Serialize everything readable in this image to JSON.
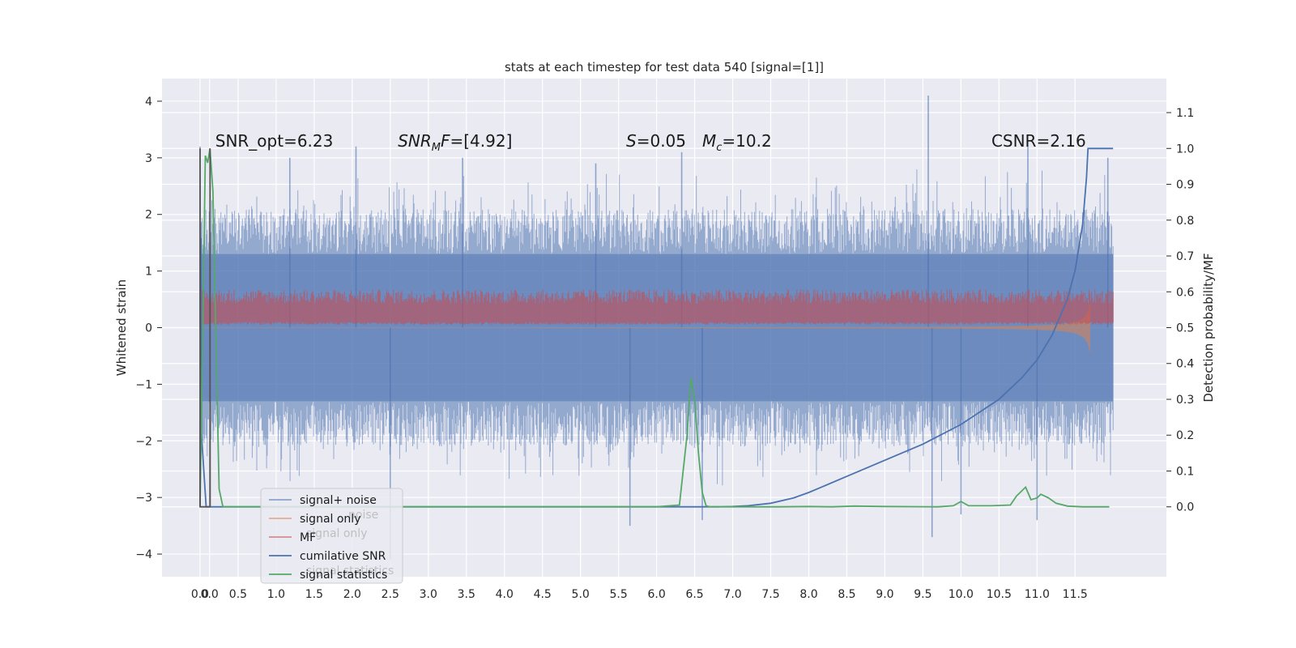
{
  "chart_data": {
    "type": "line",
    "title": "stats at each timestep for test data 540 [signal=[1]]",
    "ylabel_left": "Whitened strain",
    "ylabel_right": "Detection probability/MF",
    "ylim_left": [
      -4.4,
      4.4
    ],
    "ylim_right": [
      -0.195,
      1.195
    ],
    "xlim": [
      -0.5,
      12.7
    ],
    "x_ticks": [
      "0.0",
      "0.0",
      "0.5",
      "1.0",
      "1.5",
      "2.0",
      "2.5",
      "3.0",
      "3.5",
      "4.0",
      "4.5",
      "5.0",
      "5.5",
      "6.0",
      "6.5",
      "7.0",
      "7.5",
      "8.0",
      "8.5",
      "9.0",
      "9.5",
      "10.0",
      "10.5",
      "11.0",
      "11.5"
    ],
    "x_tick_positions": [
      0.0,
      0.125,
      0.5,
      1.0,
      1.5,
      2.0,
      2.5,
      3.0,
      3.5,
      4.0,
      4.5,
      5.0,
      5.5,
      6.0,
      6.5,
      7.0,
      7.5,
      8.0,
      8.5,
      9.0,
      9.5,
      10.0,
      10.5,
      11.0,
      11.5
    ],
    "y_left_ticks": [
      -4,
      -3,
      -2,
      -1,
      0,
      1,
      2,
      3,
      4
    ],
    "y_left_tick_labels": [
      "−4",
      "−3",
      "−2",
      "−1",
      "0",
      "1",
      "2",
      "3",
      "4"
    ],
    "y_right_ticks": [
      0.0,
      0.1,
      0.2,
      0.3,
      0.4,
      0.5,
      0.6,
      0.7,
      0.8,
      0.9,
      1.0,
      1.1
    ],
    "y_right_tick_labels": [
      "0.0",
      "0.1",
      "0.2",
      "0.3",
      "0.4",
      "0.5",
      "0.6",
      "0.7",
      "0.8",
      "0.9",
      "1.0",
      "1.1"
    ],
    "grid": true,
    "legend_placement": "lower-left",
    "annotations": [
      {
        "text": "SNR_opt=6.23",
        "x": 0.2
      },
      {
        "text": "SNR_MF=[4.92]",
        "x": 2.6
      },
      {
        "text": "S=0.05",
        "x": 5.6
      },
      {
        "text": "M_c=10.2",
        "x": 6.6
      },
      {
        "text": "CSNR=2.16",
        "x": 10.4
      }
    ],
    "annotation_y": 3.3,
    "legend_labels": [
      "signal+ noise",
      "signal only",
      "MF",
      "cumilative SNR",
      "signal statistics"
    ],
    "legend_ghost_labels": [
      "noise",
      "signal only",
      "signal statistics"
    ],
    "series": [
      {
        "name": "signal+ noise",
        "axis": "left",
        "color": "#4c72b0",
        "style": "noise-band",
        "x_range": [
          0.0,
          12.0
        ],
        "envelope": {
          "lower_typical": -1.8,
          "upper_typical": 1.8,
          "core": 1.3
        },
        "spikes": [
          [
            0.0,
            3.2
          ],
          [
            1.18,
            3.0
          ],
          [
            2.05,
            3.2
          ],
          [
            3.45,
            3.0
          ],
          [
            5.2,
            2.9
          ],
          [
            6.33,
            3.1
          ],
          [
            9.57,
            4.1
          ],
          [
            10.88,
            3.2
          ],
          [
            11.93,
            3.0
          ],
          [
            2.5,
            -4.1
          ],
          [
            5.65,
            -3.5
          ],
          [
            6.6,
            -3.4
          ],
          [
            9.62,
            -3.7
          ],
          [
            10.0,
            -3.3
          ],
          [
            11.0,
            -3.4
          ]
        ]
      },
      {
        "name": "signal only",
        "axis": "left",
        "color": "#dd8452",
        "style": "chirp",
        "x_range": [
          0.0,
          11.7
        ]
      },
      {
        "name": "MF",
        "axis": "left",
        "color": "#c44e52",
        "style": "mf-band",
        "x_range": [
          0.0,
          12.0
        ],
        "band": [
          0.05,
          0.55
        ]
      },
      {
        "name": "cumilative SNR",
        "axis": "right",
        "color": "#4c72b0",
        "x": [
          0.0,
          0.01,
          0.02,
          0.08,
          1.0,
          2.0,
          3.0,
          4.0,
          5.0,
          6.0,
          6.8,
          7.0,
          7.2,
          7.5,
          7.8,
          8.0,
          8.5,
          9.0,
          9.5,
          10.0,
          10.5,
          10.8,
          11.0,
          11.2,
          11.4,
          11.5,
          11.6,
          11.65,
          11.67,
          12.0
        ],
        "y": [
          0.0,
          0.75,
          0.2,
          0.0,
          0.0,
          0.0,
          0.0,
          0.0,
          0.0,
          0.0,
          0.0,
          0.001,
          0.003,
          0.01,
          0.025,
          0.04,
          0.085,
          0.13,
          0.175,
          0.23,
          0.3,
          0.36,
          0.41,
          0.48,
          0.58,
          0.66,
          0.79,
          0.92,
          1.0,
          1.0
        ]
      },
      {
        "name": "signal statistics",
        "axis": "right",
        "color": "#55a868",
        "x": [
          0.0,
          0.04,
          0.07,
          0.1,
          0.13,
          0.17,
          0.2,
          0.25,
          0.3,
          1.0,
          2.0,
          3.0,
          4.0,
          5.0,
          6.0,
          6.3,
          6.4,
          6.45,
          6.5,
          6.55,
          6.6,
          6.65,
          6.7,
          7.0,
          7.6,
          8.0,
          8.3,
          8.6,
          9.0,
          9.7,
          9.9,
          10.0,
          10.1,
          10.4,
          10.65,
          10.73,
          10.85,
          10.92,
          11.0,
          11.05,
          11.15,
          11.25,
          11.4,
          11.6,
          11.95
        ],
        "y": [
          0.0,
          0.55,
          0.98,
          0.96,
          1.0,
          0.88,
          0.55,
          0.05,
          0.0,
          0.0,
          0.0,
          0.0,
          0.0,
          0.0,
          0.0,
          0.005,
          0.2,
          0.36,
          0.3,
          0.15,
          0.04,
          0.003,
          0.0,
          0.0,
          0.0,
          0.001,
          0.0,
          0.002,
          0.001,
          0.0,
          0.003,
          0.015,
          0.003,
          0.003,
          0.005,
          0.03,
          0.055,
          0.02,
          0.025,
          0.035,
          0.025,
          0.01,
          0.002,
          0.0,
          0.0
        ]
      },
      {
        "name": "",
        "axis": "right",
        "color": "#555555",
        "x": [
          0.0,
          0.0,
          0.001,
          0.13,
          0.131,
          0.132
        ],
        "y": [
          0.0,
          1.0,
          0.0,
          0.0,
          1.0,
          0.0
        ]
      }
    ]
  }
}
